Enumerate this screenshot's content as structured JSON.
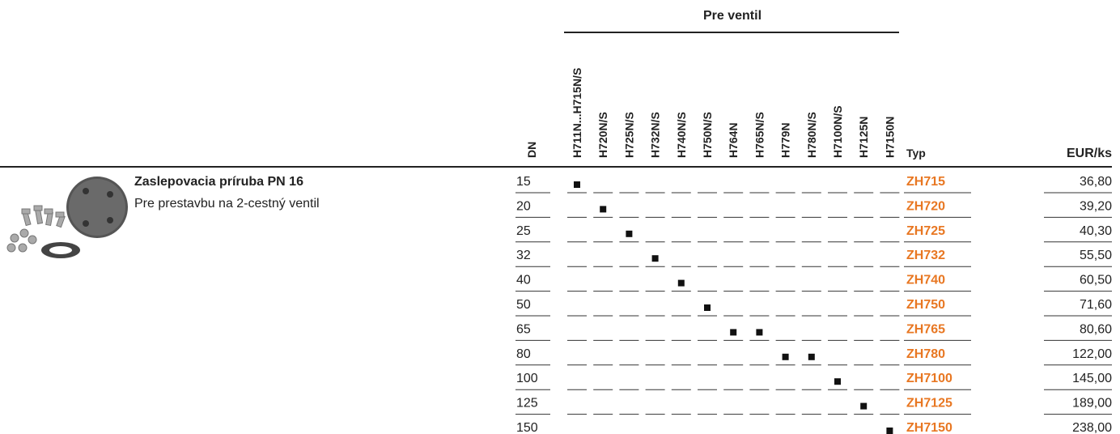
{
  "product": {
    "title": "Zaslepovacia príruba PN 16",
    "subtitle": "Pre prestavbu na 2-cestný ventil"
  },
  "table": {
    "group_header": "Pre ventil",
    "dn_header": "DN",
    "valve_headers": [
      "H711N...H715N/S",
      "H720N/S",
      "H725N/S",
      "H732N/S",
      "H740N/S",
      "H750N/S",
      "H764N",
      "H765N/S",
      "H779N",
      "H780N/S",
      "H7100N/S",
      "H7125N",
      "H7150N"
    ],
    "typ_header": "Typ",
    "price_header": "EUR/ks",
    "rows": [
      {
        "dn": "15",
        "marks": [
          0
        ],
        "typ": "ZH715",
        "price": "36,80"
      },
      {
        "dn": "20",
        "marks": [
          1
        ],
        "typ": "ZH720",
        "price": "39,20"
      },
      {
        "dn": "25",
        "marks": [
          2
        ],
        "typ": "ZH725",
        "price": "40,30"
      },
      {
        "dn": "32",
        "marks": [
          3
        ],
        "typ": "ZH732",
        "price": "55,50"
      },
      {
        "dn": "40",
        "marks": [
          4
        ],
        "typ": "ZH740",
        "price": "60,50"
      },
      {
        "dn": "50",
        "marks": [
          5
        ],
        "typ": "ZH750",
        "price": "71,60"
      },
      {
        "dn": "65",
        "marks": [
          6,
          7
        ],
        "typ": "ZH765",
        "price": "80,60"
      },
      {
        "dn": "80",
        "marks": [
          8,
          9
        ],
        "typ": "ZH780",
        "price": "122,00"
      },
      {
        "dn": "100",
        "marks": [
          10
        ],
        "typ": "ZH7100",
        "price": "145,00"
      },
      {
        "dn": "125",
        "marks": [
          11
        ],
        "typ": "ZH7125",
        "price": "189,00"
      },
      {
        "dn": "150",
        "marks": [
          12
        ],
        "typ": "ZH7150",
        "price": "238,00"
      }
    ]
  }
}
